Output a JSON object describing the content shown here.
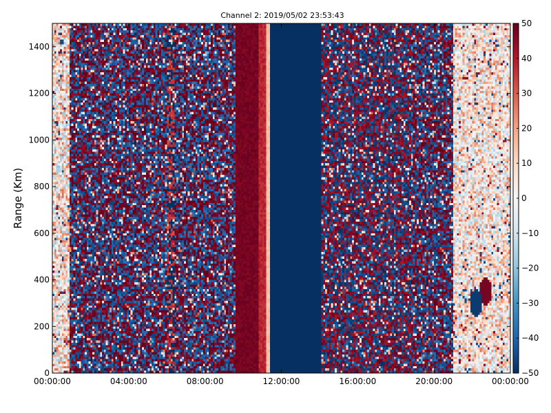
{
  "chart_data": {
    "type": "heatmap",
    "title": "Channel 2: 2019/05/02 23:53:43",
    "xlabel": "",
    "ylabel": "Range (Km)",
    "x_ticks": [
      "00:00:00",
      "04:00:00",
      "08:00:00",
      "12:00:00",
      "16:00:00",
      "20:00:00",
      "00:00:00"
    ],
    "y_ticks": [
      "0",
      "200",
      "400",
      "600",
      "800",
      "1000",
      "1200",
      "1400"
    ],
    "x_range_hours": [
      0,
      24
    ],
    "y_range_km": [
      0,
      1500
    ],
    "colorbar": {
      "colormap": "RdBu_r",
      "range": [
        -50,
        50
      ],
      "ticks": [
        "50",
        "40",
        "30",
        "20",
        "10",
        "0",
        "−10",
        "−20",
        "−30",
        "−40",
        "−50"
      ]
    },
    "segments": [
      {
        "t_start": 0.0,
        "t_end": 0.9,
        "pattern": "pale-noise",
        "mean": 5,
        "spread": 25
      },
      {
        "t_start": 0.9,
        "t_end": 6.0,
        "pattern": "noise",
        "mean": 10,
        "spread": 60
      },
      {
        "t_start": 6.0,
        "t_end": 6.4,
        "pattern": "noise",
        "mean": -30,
        "spread": 30
      },
      {
        "t_start": 6.4,
        "t_end": 9.6,
        "pattern": "noise",
        "mean": 12,
        "spread": 60
      },
      {
        "t_start": 9.6,
        "t_end": 10.8,
        "pattern": "solid",
        "mean": 48,
        "spread": 4
      },
      {
        "t_start": 10.8,
        "t_end": 11.2,
        "pattern": "solid",
        "mean": 38,
        "spread": 6
      },
      {
        "t_start": 11.2,
        "t_end": 11.4,
        "pattern": "solid",
        "mean": 15,
        "spread": 6
      },
      {
        "t_start": 11.4,
        "t_end": 14.1,
        "pattern": "solid",
        "mean": -50,
        "spread": 0
      },
      {
        "t_start": 14.1,
        "t_end": 18.8,
        "pattern": "noise",
        "mean": 0,
        "spread": 60
      },
      {
        "t_start": 18.8,
        "t_end": 21.0,
        "pattern": "noise",
        "mean": 8,
        "spread": 55
      },
      {
        "t_start": 21.0,
        "t_end": 24.0,
        "pattern": "pale-noise",
        "mean": 5,
        "spread": 22
      }
    ],
    "features": [
      {
        "name": "blob",
        "t": 22.7,
        "range_km": 350,
        "value": 48
      },
      {
        "name": "blob",
        "t": 22.2,
        "range_km": 300,
        "value": -48
      }
    ]
  }
}
